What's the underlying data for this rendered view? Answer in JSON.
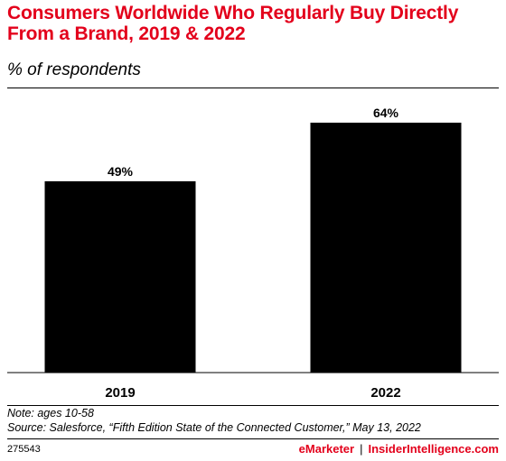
{
  "title": "Consumers Worldwide Who Regularly Buy Directly From a Brand, 2019 & 2022",
  "subtitle": "% of respondents",
  "note": "Note: ages 10-58",
  "source": "Source: Salesforce, “Fifth Edition State of the Connected Customer,” May 13, 2022",
  "chart_id": "275543",
  "brand": {
    "part1": "eMarketer",
    "separator": "|",
    "part2": "InsiderIntelligence.com"
  },
  "colors": {
    "title": "#e3001b",
    "bar": "#000000",
    "brand": "#e3001b"
  },
  "chart_data": {
    "type": "bar",
    "title": "Consumers Worldwide Who Regularly Buy Directly From a Brand, 2019 & 2022",
    "subtitle": "% of respondents",
    "categories": [
      "2019",
      "2022"
    ],
    "values": [
      49,
      64
    ],
    "data_labels": [
      "49%",
      "64%"
    ],
    "unit": "%",
    "ylim": [
      0,
      70
    ],
    "xlabel": "",
    "ylabel": "",
    "grid": false,
    "legend": "none"
  }
}
